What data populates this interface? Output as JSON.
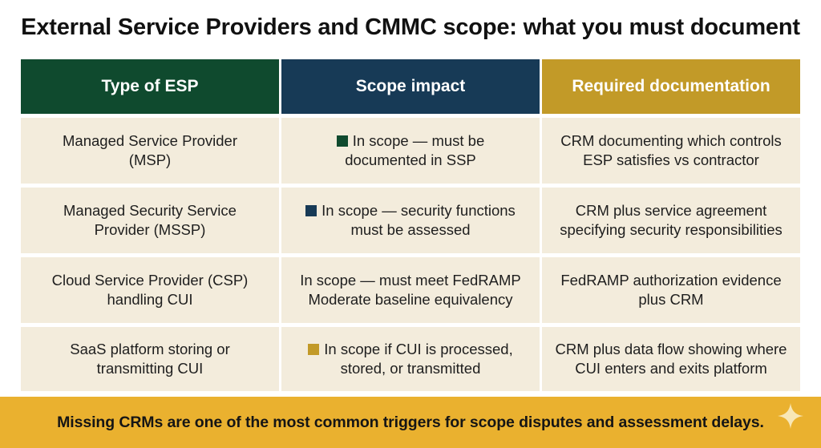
{
  "title": "External Service Providers and CMMC scope: what you must document",
  "colors": {
    "green": "#0f4a2e",
    "navy": "#173a56",
    "gold": "#c29a28",
    "cell_bg": "#f3ecdc",
    "banner_bg": "#eab12f"
  },
  "table": {
    "headers": [
      "Type of ESP",
      "Scope impact",
      "Required documentation"
    ],
    "rows": [
      {
        "type_line1": "Managed Service Provider",
        "type_line2": "(MSP)",
        "marker": "green",
        "impact_line1": "In scope — must be",
        "impact_line2": "documented in SSP",
        "doc_line1": "CRM documenting which controls",
        "doc_line2": "ESP satisfies vs contractor"
      },
      {
        "type_line1": "Managed Security Service",
        "type_line2": "Provider (MSSP)",
        "marker": "navy",
        "impact_line1": "In scope — security functions",
        "impact_line2": "must be assessed",
        "doc_line1": "CRM plus service agreement",
        "doc_line2": "specifying security responsibilities"
      },
      {
        "type_line1": "Cloud Service Provider (CSP)",
        "type_line2": "handling CUI",
        "marker": "none",
        "impact_line1": "In scope — must meet FedRAMP",
        "impact_line2": "Moderate baseline equivalency",
        "doc_line1": "FedRAMP authorization evidence",
        "doc_line2": "plus CRM"
      },
      {
        "type_line1": "SaaS platform storing or",
        "type_line2": "transmitting CUI",
        "marker": "gold",
        "impact_line1": "In scope if CUI is processed,",
        "impact_line2": "stored, or transmitted",
        "doc_line1": "CRM plus data flow showing where",
        "doc_line2": "CUI enters and exits platform"
      }
    ]
  },
  "banner": {
    "text": "Missing CRMs are one of the most common triggers for scope disputes and assessment delays.",
    "icon": "sparkle-icon"
  }
}
